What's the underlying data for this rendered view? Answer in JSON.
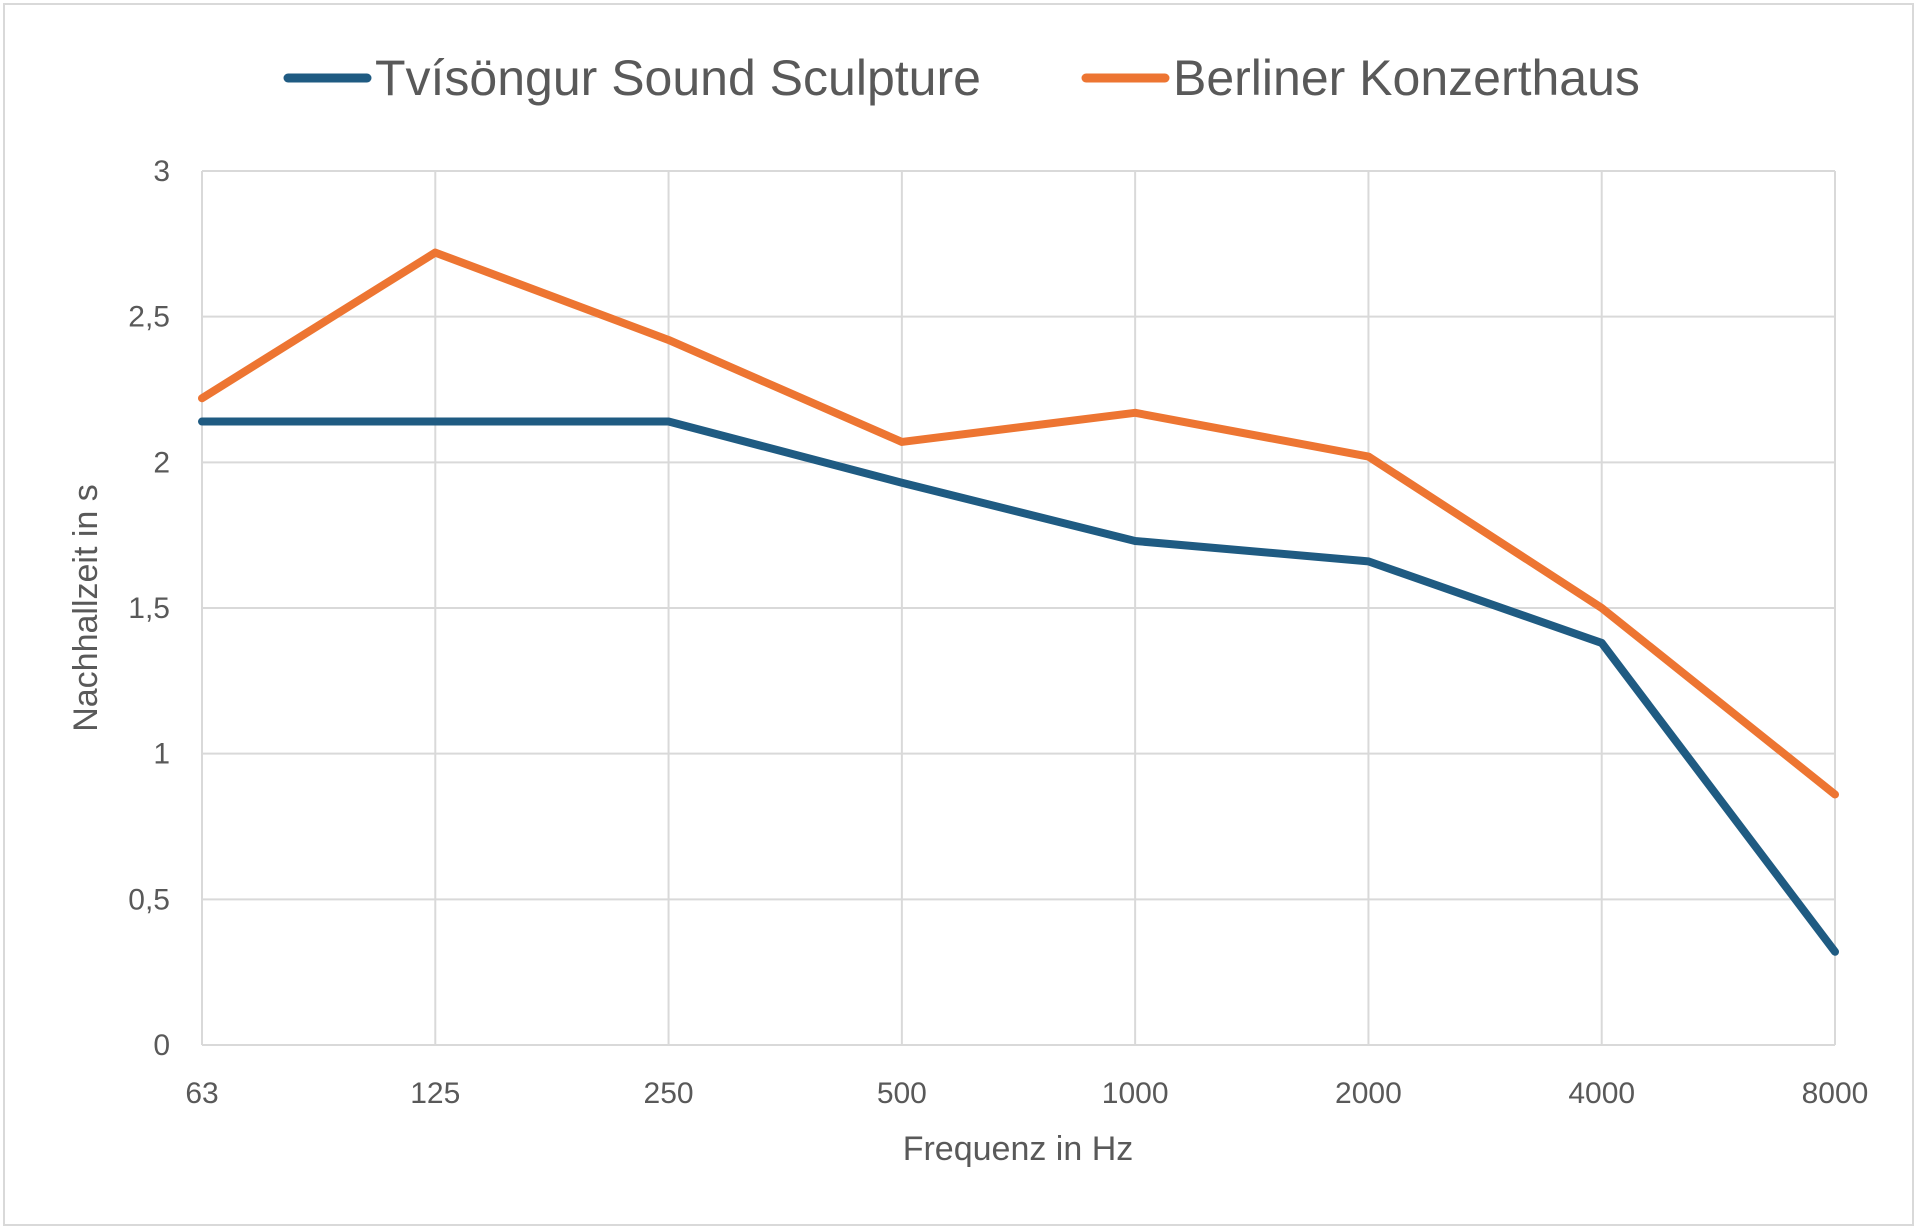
{
  "chart_data": {
    "type": "line",
    "categories": [
      "63",
      "125",
      "250",
      "500",
      "1000",
      "2000",
      "4000",
      "8000"
    ],
    "series": [
      {
        "name": "Tvísöngur Sound Sculpture",
        "color": "#1f5b82",
        "values": [
          2.14,
          2.14,
          2.14,
          1.93,
          1.73,
          1.66,
          1.38,
          0.32
        ]
      },
      {
        "name": "Berliner Konzerthaus",
        "color": "#ed7532",
        "values": [
          2.22,
          2.72,
          2.42,
          2.07,
          2.17,
          2.02,
          1.5,
          0.86
        ]
      }
    ],
    "xlabel": "Frequenz in Hz",
    "ylabel": "Nachhallzeit in s",
    "ylim": [
      0,
      3
    ],
    "yticks": [
      0,
      0.5,
      1,
      1.5,
      2,
      2.5,
      3
    ],
    "ytick_labels": [
      "0",
      "0,5",
      "1",
      "1,5",
      "2",
      "2,5",
      "3"
    ],
    "grid": true,
    "legend_position": "top"
  }
}
